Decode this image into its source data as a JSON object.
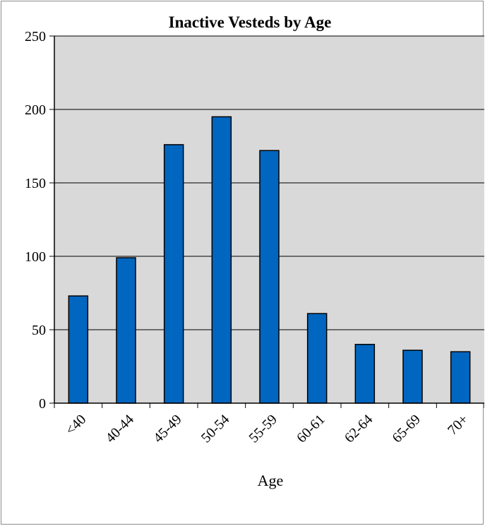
{
  "chart_data": {
    "type": "bar",
    "title": "Inactive Vesteds by Age",
    "xlabel": "Age",
    "ylabel": "",
    "categories": [
      "<40",
      "40-44",
      "45-49",
      "50-54",
      "55-59",
      "60-61",
      "62-64",
      "65-69",
      "70+"
    ],
    "values": [
      73,
      99,
      176,
      195,
      172,
      61,
      40,
      36,
      35
    ],
    "ylim": [
      0,
      250
    ],
    "yticks": [
      "0",
      "50",
      "100",
      "150",
      "200",
      "250"
    ],
    "grid": true,
    "legend": "none",
    "colors": {
      "bar": "#0066bf",
      "plot_background": "#d9d9d9",
      "gridline": "#000000"
    }
  }
}
